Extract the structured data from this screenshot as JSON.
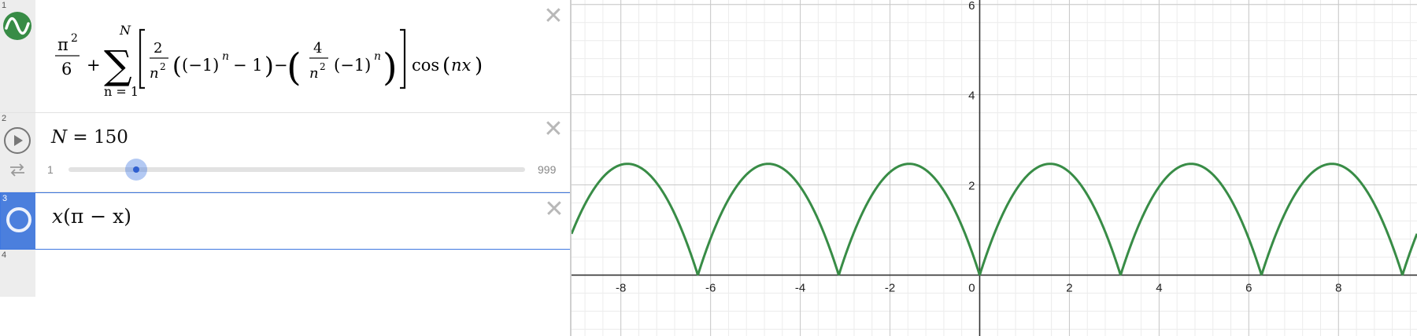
{
  "expressions": [
    {
      "index": "1",
      "formula": {
        "pi2_num": "π",
        "pi2_exp": "2",
        "pi2_den": "6",
        "plus": "+",
        "sum_upper": "N",
        "sum_lower": "n = 1",
        "f1_num": "2",
        "f1_den_base": "n",
        "f1_den_exp": "2",
        "minus_one_base": "(−1)",
        "minus_one_exp": "n",
        "minus_one_tail": "− 1",
        "minus": "−",
        "f2_num": "4",
        "f2_den_base": "n",
        "f2_den_exp": "2",
        "inner_base": "(−1)",
        "inner_exp": "n",
        "cos": "cos",
        "cos_arg": "nx"
      },
      "color": "#388c46"
    },
    {
      "index": "2",
      "text_var": "N",
      "text_eq": " = 150",
      "slider": {
        "min": "1",
        "max": "999",
        "value": 150
      }
    },
    {
      "index": "3",
      "text_x": "x",
      "text_rest": "(π − x)"
    },
    {
      "index": "4"
    }
  ],
  "graph": {
    "x_ticks": [
      "-8",
      "-6",
      "-4",
      "-2",
      "0",
      "2",
      "4",
      "6",
      "8"
    ],
    "y_ticks": [
      "2",
      "4",
      "6"
    ],
    "curve_color": "#388c46"
  },
  "chart_data": {
    "type": "line",
    "xlim": [
      -9.1,
      9.75
    ],
    "ylim": [
      -1.35,
      6.1
    ],
    "grid": true,
    "function": "π²/6 + Σ_{n=1}^{N} [ (2/n²)((−1)^n − 1) − (4/n²)(−1)^n ] cos(nx)",
    "N": 150
  }
}
